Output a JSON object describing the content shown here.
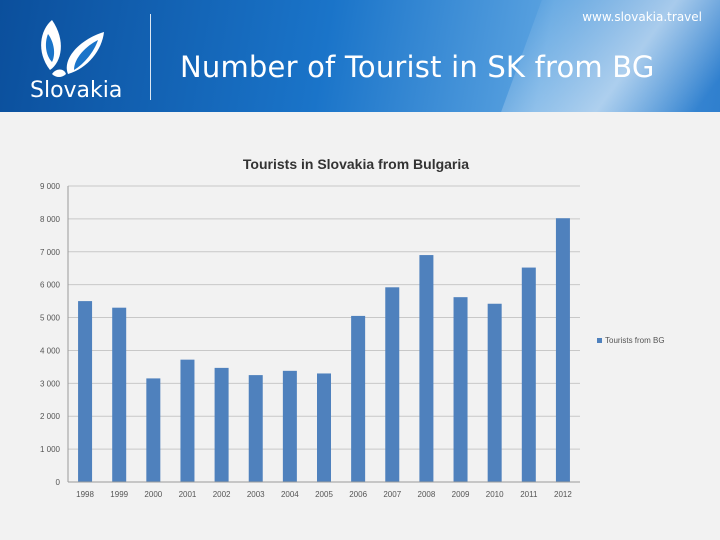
{
  "header": {
    "website": "www.slovakia.travel",
    "slide_title": "Number of Tourist in SK from BG",
    "logo_text": "Slovakia"
  },
  "colors": {
    "bar": "#4f81bd",
    "header_blue": "#1a74c9"
  },
  "chart_data": {
    "type": "bar",
    "title": "Tourists in Slovakia from Bulgaria",
    "categories": [
      "1998",
      "1999",
      "2000",
      "2001",
      "2002",
      "2003",
      "2004",
      "2005",
      "2006",
      "2007",
      "2008",
      "2009",
      "2010",
      "2011",
      "2012"
    ],
    "series": [
      {
        "name": "Tourists from BG",
        "values": [
          5500,
          5300,
          3150,
          3720,
          3470,
          3250,
          3380,
          3300,
          5050,
          5920,
          6900,
          5620,
          5420,
          6520,
          8020
        ]
      }
    ],
    "yticks": [
      "0",
      "1 000",
      "2 000",
      "3 000",
      "4 000",
      "5 000",
      "6 000",
      "7 000",
      "8 000",
      "9 000"
    ],
    "ylim": [
      0,
      9000
    ],
    "grid": true,
    "legend": "right"
  }
}
